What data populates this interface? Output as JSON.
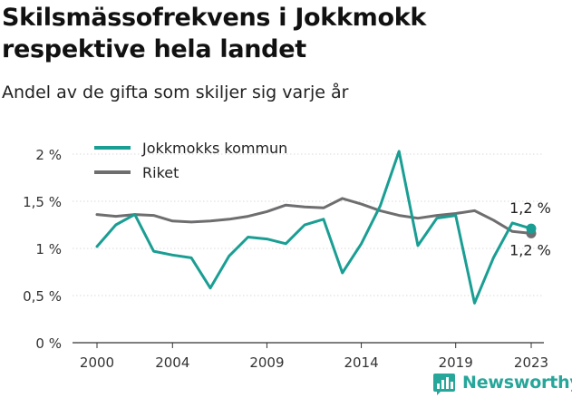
{
  "title": "Skilsmässofrekvens i Jokkmokk respektive hela landet",
  "subtitle": "Andel av de gifta som skiljer sig varje år",
  "brand": {
    "name": "Newsworthy",
    "icon": "newsworthy-logo-icon"
  },
  "chart_data": {
    "type": "line",
    "x": [
      2000,
      2001,
      2002,
      2003,
      2004,
      2005,
      2006,
      2007,
      2008,
      2009,
      2010,
      2011,
      2012,
      2013,
      2014,
      2015,
      2016,
      2017,
      2018,
      2019,
      2020,
      2021,
      2022,
      2023
    ],
    "x_ticks": [
      "2000",
      "2004",
      "2009",
      "2014",
      "2019",
      "2023"
    ],
    "x_tick_values": [
      2000,
      2004,
      2009,
      2014,
      2019,
      2023
    ],
    "xlim": [
      2000,
      2023
    ],
    "ylim": [
      0,
      2
    ],
    "y_ticks": [
      "0 %",
      "0,5 %",
      "1 %",
      "1,5 %",
      "2 %"
    ],
    "y_tick_values": [
      0,
      0.5,
      1,
      1.5,
      2
    ],
    "grid": true,
    "legend_position": "top-left",
    "series": [
      {
        "name": "Jokkmokks kommun",
        "color": "#1a9e93",
        "values": [
          1.02,
          1.25,
          1.36,
          0.97,
          0.93,
          0.9,
          0.58,
          0.92,
          1.12,
          1.1,
          1.05,
          1.25,
          1.31,
          0.74,
          1.05,
          1.45,
          2.03,
          1.03,
          1.32,
          1.35,
          0.42,
          0.9,
          1.27,
          1.21
        ],
        "end_label": "1,2 %"
      },
      {
        "name": "Riket",
        "color": "#6e6e70",
        "values": [
          1.36,
          1.34,
          1.36,
          1.35,
          1.29,
          1.28,
          1.29,
          1.31,
          1.34,
          1.39,
          1.46,
          1.44,
          1.43,
          1.53,
          1.47,
          1.4,
          1.35,
          1.32,
          1.35,
          1.37,
          1.4,
          1.3,
          1.18,
          1.16
        ],
        "end_label": "1,2 %"
      }
    ]
  }
}
